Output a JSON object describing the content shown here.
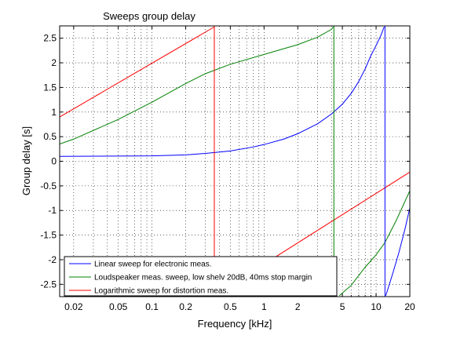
{
  "chart_data": {
    "type": "line",
    "title": "Sweeps group delay",
    "xlabel": "Frequency [kHz]",
    "ylabel": "Group delay [s]",
    "x_scale": "log",
    "xlim": [
      0.015,
      20
    ],
    "ylim": [
      -2.75,
      2.75
    ],
    "xticks": [
      0.02,
      0.05,
      0.1,
      0.2,
      0.5,
      1,
      2,
      5,
      10,
      20
    ],
    "xtick_labels": [
      "0.02",
      "0.05",
      "0.1",
      "0.2",
      "0.5",
      "1",
      "2",
      "5",
      "10",
      "20"
    ],
    "yticks": [
      -2.5,
      -2,
      -1.5,
      -1,
      -0.5,
      0,
      0.5,
      1,
      1.5,
      2,
      2.5
    ],
    "ytick_labels": [
      "-2.5",
      "-2",
      "-1.5",
      "-1",
      "-0.5",
      "0",
      "0.5",
      "1",
      "1.5",
      "2",
      "2.5"
    ],
    "grid": "dotted",
    "legend_position": "bottom-left",
    "series": [
      {
        "name": "Linear sweep for electronic meas.",
        "color": "#0000ff",
        "points": [
          [
            0.015,
            0.1
          ],
          [
            0.1,
            0.11
          ],
          [
            0.2,
            0.13
          ],
          [
            0.3,
            0.16
          ],
          [
            0.5,
            0.21
          ],
          [
            0.8,
            0.29
          ],
          [
            1,
            0.34
          ],
          [
            1.5,
            0.45
          ],
          [
            2,
            0.56
          ],
          [
            3,
            0.76
          ],
          [
            4,
            0.96
          ],
          [
            5,
            1.16
          ],
          [
            6,
            1.38
          ],
          [
            7,
            1.62
          ],
          [
            8,
            1.88
          ],
          [
            9,
            2.15
          ],
          [
            10,
            2.35
          ],
          [
            11,
            2.55
          ],
          [
            11.8,
            2.73
          ]
        ]
      },
      {
        "name": "Linear sweep for electronic meas.",
        "color": "#0000ff",
        "points": [
          [
            12.2,
            -2.73
          ],
          [
            14,
            -2.3
          ],
          [
            16,
            -1.85
          ],
          [
            18,
            -1.4
          ],
          [
            20,
            -0.95
          ]
        ]
      },
      {
        "name": "Loudspeaker meas. sweep, low shelv 20dB, 40ms stop margin",
        "color": "#008000",
        "points": [
          [
            0.015,
            0.35
          ],
          [
            0.02,
            0.45
          ],
          [
            0.05,
            0.85
          ],
          [
            0.1,
            1.2
          ],
          [
            0.2,
            1.58
          ],
          [
            0.3,
            1.78
          ],
          [
            0.5,
            1.97
          ],
          [
            1,
            2.17
          ],
          [
            2,
            2.37
          ],
          [
            3,
            2.52
          ],
          [
            4,
            2.68
          ],
          [
            4.15,
            2.73
          ]
        ]
      },
      {
        "name": "Loudspeaker meas. sweep, low shelv 20dB, 40ms stop margin",
        "color": "#008000",
        "points": [
          [
            4.7,
            -2.73
          ],
          [
            6,
            -2.52
          ],
          [
            8,
            -2.15
          ],
          [
            10,
            -1.9
          ],
          [
            12,
            -1.65
          ],
          [
            15,
            -1.22
          ],
          [
            20,
            -0.6
          ]
        ]
      },
      {
        "name": "Logarithmic sweep for distortion meas.",
        "color": "#ff0000",
        "points": [
          [
            0.015,
            0.9
          ],
          [
            0.36,
            2.73
          ]
        ]
      },
      {
        "name": "Logarithmic sweep for distortion meas.",
        "color": "#ff0000",
        "points": [
          [
            0.75,
            -2.27
          ],
          [
            20,
            -0.22
          ]
        ]
      }
    ],
    "vertical_lines": [
      {
        "x": 0.36,
        "color": "#ff0000"
      },
      {
        "x": 4.2,
        "color": "#008000"
      },
      {
        "x": 12,
        "color": "#0000ff"
      }
    ],
    "legend": [
      {
        "label": "Linear sweep for electronic meas.",
        "color": "#0000ff"
      },
      {
        "label": "Loudspeaker meas. sweep, low shelv 20dB, 40ms stop margin",
        "color": "#008000"
      },
      {
        "label": "Logarithmic sweep for distortion meas.",
        "color": "#ff0000"
      }
    ]
  }
}
